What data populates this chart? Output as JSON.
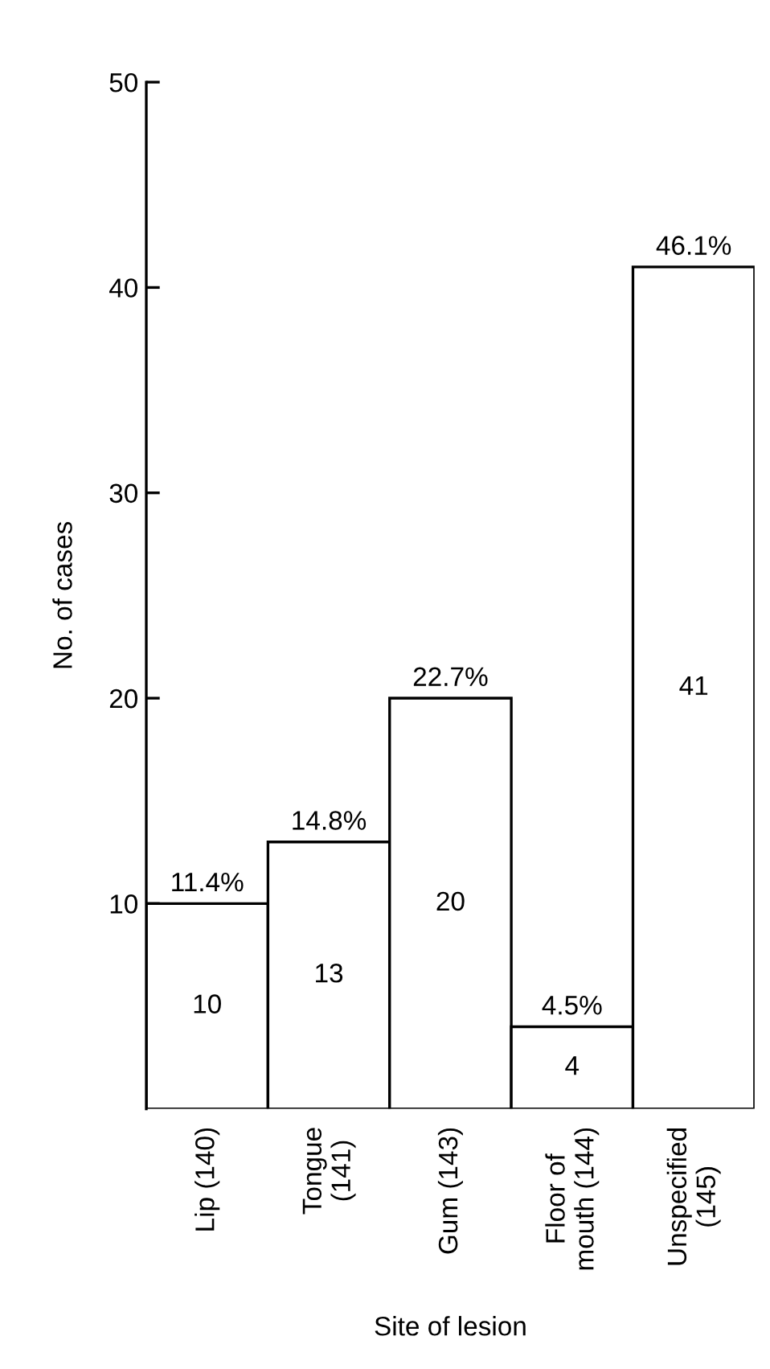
{
  "chart_data": {
    "type": "bar",
    "xlabel": "Site of lesion",
    "ylabel": "No. of cases",
    "categories": [
      "Lip (140)",
      "Tongue\n(141)",
      "Gum (143)",
      "Floor of\nmouth (144)",
      "Unspecified\n(145)"
    ],
    "values": [
      10,
      13,
      20,
      4,
      41
    ],
    "value_labels": [
      "10",
      "13",
      "20",
      "4",
      "41"
    ],
    "annotations": [
      {
        "text": "11.4%",
        "x": "Lip (140)",
        "y": 10
      },
      {
        "text": "14.8%",
        "x": "Tongue\n(141)",
        "y": 13
      },
      {
        "text": "22.7%",
        "x": "Gum (143)",
        "y": 20
      },
      {
        "text": "4.5%",
        "x": "Floor of\nmouth (144)",
        "y": 4
      },
      {
        "text": "46.1%",
        "x": "Unspecified\n(145)",
        "y": 41
      }
    ],
    "color": "#ffffff",
    "ylim": [
      0,
      50
    ],
    "yticks": [
      10,
      20,
      30,
      40,
      50
    ],
    "grid": false,
    "legend": false
  }
}
